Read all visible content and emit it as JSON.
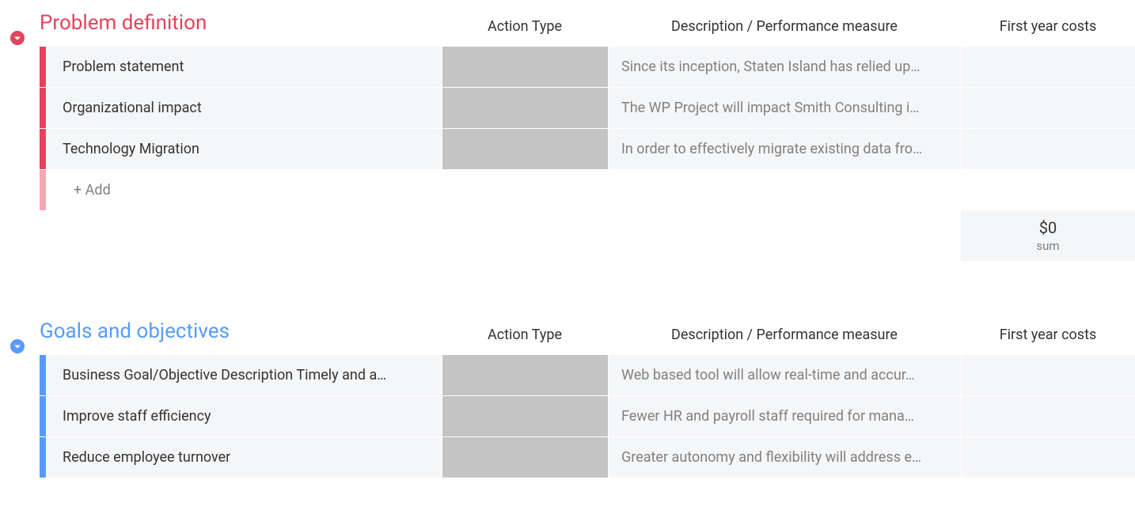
{
  "columns": {
    "action_type": "Action Type",
    "description": "Description / Performance measure",
    "first_year_costs": "First year costs"
  },
  "add_label": "+ Add",
  "sections": [
    {
      "id": "problem-definition",
      "title": "Problem definition",
      "title_color": "#e2445c",
      "chevron_color": "#e2445c",
      "bar_color": "#e2445c",
      "bar_color_light": "#f4a8b4",
      "rows": [
        {
          "name": "Problem statement",
          "description": "Since its inception, Staten Island has relied up…",
          "cost": ""
        },
        {
          "name": "Organizational impact",
          "description": "The WP Project will impact Smith Consulting i…",
          "cost": ""
        },
        {
          "name": "Technology Migration",
          "description": "In order to effectively migrate existing data fro…",
          "cost": ""
        }
      ],
      "summary": {
        "value": "$0",
        "label": "sum"
      }
    },
    {
      "id": "goals-objectives",
      "title": "Goals and objectives",
      "title_color": "#579bfc",
      "chevron_color": "#579bfc",
      "bar_color": "#579bfc",
      "bar_color_light": "#a9cafd",
      "rows": [
        {
          "name": "Business Goal/Objective Description Timely and a…",
          "description": "Web based tool will allow real-time and accur…",
          "cost": ""
        },
        {
          "name": "Improve staff efficiency",
          "description": "Fewer HR and payroll staff required for mana…",
          "cost": ""
        },
        {
          "name": "Reduce employee turnover",
          "description": "Greater autonomy and flexibility will address e…",
          "cost": ""
        }
      ]
    }
  ]
}
